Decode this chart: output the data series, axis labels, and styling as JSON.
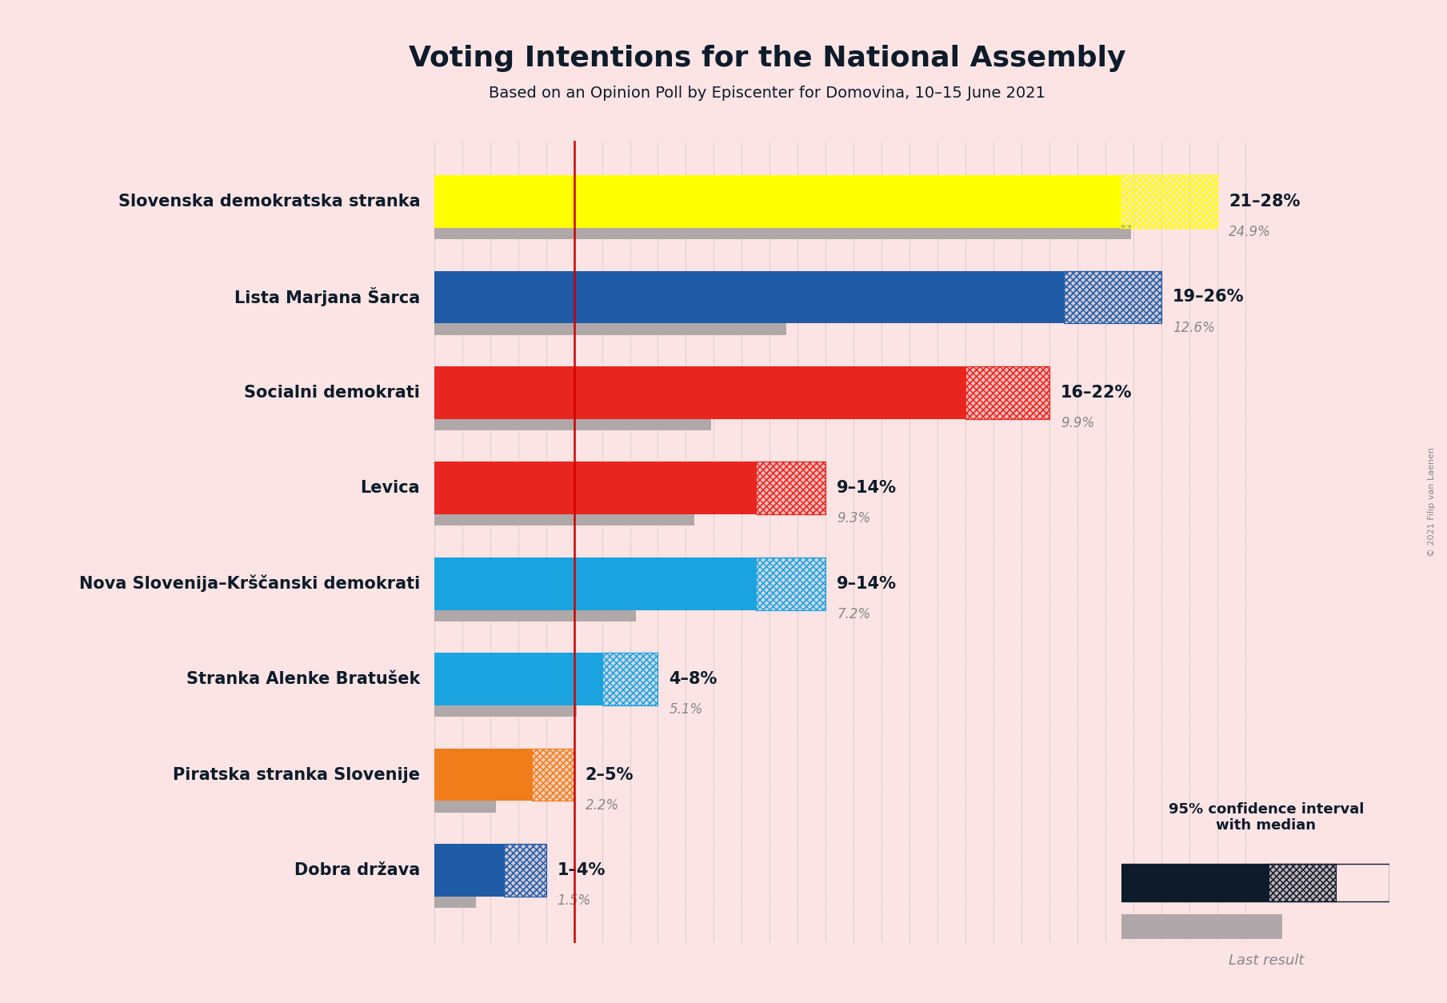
{
  "title": "Voting Intentions for the National Assembly",
  "subtitle": "Based on an Opinion Poll by Episcenter for Domovina, 10–15 June 2021",
  "copyright": "© 2021 Filip van Laenen",
  "background_color": "#fce4e4",
  "parties": [
    {
      "name": "Slovenska demokratska stranka",
      "color": "#FFFF00",
      "ci_low": 21,
      "ci_high": 28,
      "median": 24.5,
      "last_result": 24.9,
      "range_label": "21–28%",
      "last_label": "24.9%"
    },
    {
      "name": "Lista Marjana Šarca",
      "color": "#1F5BA6",
      "ci_low": 19,
      "ci_high": 26,
      "median": 22.5,
      "last_result": 12.6,
      "range_label": "19–26%",
      "last_label": "12.6%"
    },
    {
      "name": "Socialni demokrati",
      "color": "#E8251F",
      "ci_low": 16,
      "ci_high": 22,
      "median": 19.0,
      "last_result": 9.9,
      "range_label": "16–22%",
      "last_label": "9.9%"
    },
    {
      "name": "Levica",
      "color": "#E8251F",
      "ci_low": 9,
      "ci_high": 14,
      "median": 11.5,
      "last_result": 9.3,
      "range_label": "9–14%",
      "last_label": "9.3%"
    },
    {
      "name": "Nova Slovenija–Krščanski demokrati",
      "color": "#1BA3E0",
      "ci_low": 9,
      "ci_high": 14,
      "median": 11.5,
      "last_result": 7.2,
      "range_label": "9–14%",
      "last_label": "7.2%"
    },
    {
      "name": "Stranka Alenke Bratušek",
      "color": "#1BA3E0",
      "ci_low": 4,
      "ci_high": 8,
      "median": 6.0,
      "last_result": 5.1,
      "range_label": "4–8%",
      "last_label": "5.1%"
    },
    {
      "name": "Piratska stranka Slovenije",
      "color": "#F07D1A",
      "ci_low": 2,
      "ci_high": 5,
      "median": 3.5,
      "last_result": 2.2,
      "range_label": "2–5%",
      "last_label": "2.2%"
    },
    {
      "name": "Dobra država",
      "color": "#1F5BA6",
      "ci_low": 1,
      "ci_high": 4,
      "median": 2.5,
      "last_result": 1.5,
      "range_label": "1–4%",
      "last_label": "1.5%"
    }
  ],
  "xlim": [
    0,
    30
  ],
  "threshold_line_x": 5,
  "median_line_color": "#CC0000",
  "last_result_bar_color": "#B0A8A8",
  "grid_color": "#555555",
  "legend_bar_color": "#0D1B2A",
  "label_color": "#0D1B2A",
  "last_label_color": "#888888"
}
